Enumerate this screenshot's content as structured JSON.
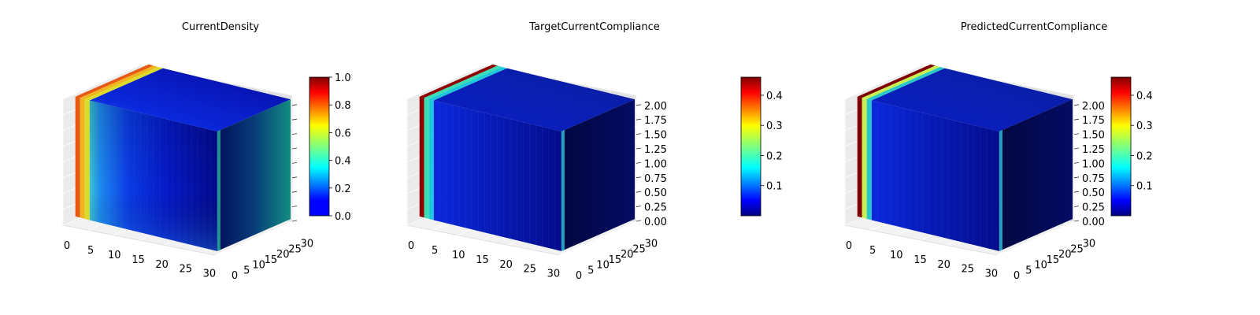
{
  "chart_data": [
    {
      "type": "surface3d",
      "title": "CurrentDensity",
      "x_ticks": [
        "0",
        "5",
        "10",
        "15",
        "20",
        "25",
        "30"
      ],
      "y_ticks": [
        "0",
        "5",
        "10",
        "15",
        "20",
        "25",
        "30"
      ],
      "z_ticks": [],
      "xlim": [
        0,
        32
      ],
      "ylim": [
        0,
        32
      ],
      "zlim": [
        0,
        2
      ],
      "colorbar": {
        "ticks": [
          "0.0",
          "0.2",
          "0.4",
          "0.6",
          "0.8",
          "1.0"
        ],
        "range": [
          0,
          1.0
        ],
        "colormap": "jet"
      },
      "grid": true
    },
    {
      "type": "surface3d",
      "title": "TargetCurrentCompliance",
      "x_ticks": [
        "0",
        "5",
        "10",
        "15",
        "20",
        "25",
        "30"
      ],
      "y_ticks": [
        "0",
        "5",
        "10",
        "15",
        "20",
        "25",
        "30"
      ],
      "z_ticks": [
        "0.00",
        "0.25",
        "0.50",
        "0.75",
        "1.00",
        "1.25",
        "1.50",
        "1.75",
        "2.00"
      ],
      "xlim": [
        0,
        32
      ],
      "ylim": [
        0,
        32
      ],
      "zlim": [
        0,
        2
      ],
      "colorbar": {
        "ticks": [
          "0.1",
          "0.2",
          "0.3",
          "0.4"
        ],
        "range": [
          0.0,
          0.46
        ],
        "colormap": "jet"
      },
      "grid": true
    },
    {
      "type": "surface3d",
      "title": "PredictedCurrentCompliance",
      "x_ticks": [
        "0",
        "5",
        "10",
        "15",
        "20",
        "25",
        "30"
      ],
      "y_ticks": [
        "0",
        "5",
        "10",
        "15",
        "20",
        "25",
        "30"
      ],
      "z_ticks": [
        "0.00",
        "0.25",
        "0.50",
        "0.75",
        "1.00",
        "1.25",
        "1.50",
        "1.75",
        "2.00"
      ],
      "xlim": [
        0,
        32
      ],
      "ylim": [
        0,
        32
      ],
      "zlim": [
        0,
        2
      ],
      "colorbar": {
        "ticks": [
          "0.1",
          "0.2",
          "0.3",
          "0.4"
        ],
        "range": [
          0.0,
          0.46
        ],
        "colormap": "jet"
      },
      "grid": true
    }
  ]
}
